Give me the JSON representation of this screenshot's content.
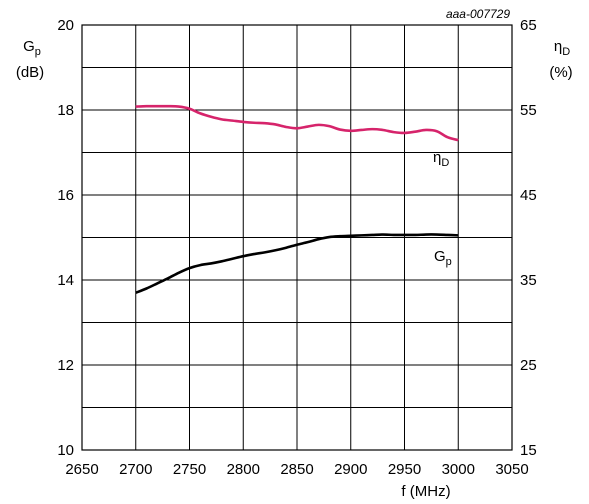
{
  "chart_data": {
    "type": "line",
    "code": "aaa-007729",
    "colors": {
      "gp": "#000000",
      "eta": "#d6246b",
      "grid": "#000000"
    },
    "x_axis": {
      "label": "f (MHz)",
      "range": [
        2650,
        3050
      ],
      "ticks": [
        "2650",
        "2700",
        "2750",
        "2800",
        "2850",
        "2900",
        "2950",
        "3000",
        "3050"
      ]
    },
    "y_left": {
      "label_main": "G",
      "label_sub": "p",
      "unit": "(dB)",
      "range": [
        10,
        20
      ],
      "ticks": [
        "10",
        "12",
        "14",
        "16",
        "18",
        "20"
      ]
    },
    "y_right": {
      "label_main": "η",
      "label_sub": "D",
      "unit": "(%)",
      "range": [
        15,
        65
      ],
      "ticks": [
        "15",
        "25",
        "35",
        "45",
        "55",
        "65"
      ]
    },
    "grid": true,
    "series": [
      {
        "key": "gp",
        "label_main": "G",
        "label_sub": "p",
        "axis": "left",
        "x": [
          2700,
          2710,
          2720,
          2730,
          2740,
          2750,
          2760,
          2770,
          2780,
          2790,
          2800,
          2810,
          2820,
          2830,
          2840,
          2850,
          2860,
          2870,
          2880,
          2890,
          2900,
          2910,
          2920,
          2930,
          2940,
          2950,
          2960,
          2970,
          2980,
          2990,
          3000
        ],
        "y": [
          13.7,
          13.8,
          13.92,
          14.04,
          14.17,
          14.28,
          14.35,
          14.39,
          14.44,
          14.5,
          14.56,
          14.61,
          14.65,
          14.7,
          14.76,
          14.83,
          14.89,
          14.96,
          15.01,
          15.03,
          15.04,
          15.05,
          15.06,
          15.07,
          15.06,
          15.06,
          15.06,
          15.07,
          15.07,
          15.06,
          15.05
        ]
      },
      {
        "key": "eta",
        "label_main": "η",
        "label_sub": "D",
        "axis": "right",
        "x": [
          2700,
          2710,
          2720,
          2730,
          2740,
          2750,
          2760,
          2770,
          2780,
          2790,
          2800,
          2810,
          2820,
          2830,
          2840,
          2850,
          2860,
          2870,
          2880,
          2890,
          2900,
          2910,
          2920,
          2930,
          2940,
          2950,
          2960,
          2970,
          2980,
          2990,
          3000
        ],
        "y": [
          55.4,
          55.45,
          55.45,
          55.45,
          55.4,
          55.15,
          54.6,
          54.2,
          53.9,
          53.75,
          53.6,
          53.5,
          53.45,
          53.3,
          53.0,
          52.85,
          53.05,
          53.25,
          53.1,
          52.7,
          52.55,
          52.65,
          52.75,
          52.65,
          52.4,
          52.3,
          52.45,
          52.65,
          52.5,
          51.8,
          51.45
        ]
      }
    ]
  }
}
